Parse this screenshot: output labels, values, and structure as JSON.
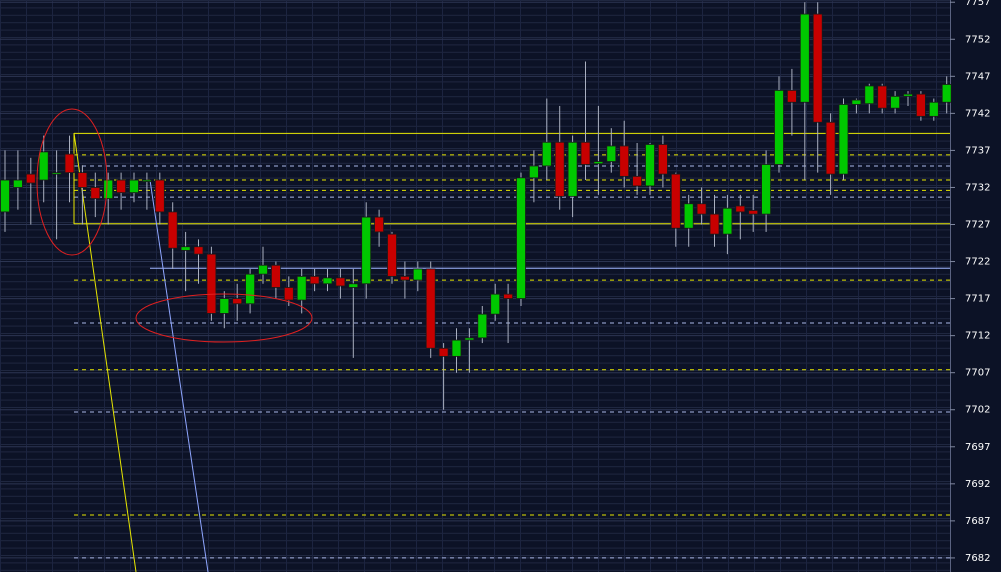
{
  "chart_data": {
    "type": "candlestick",
    "open": [
      7728.7,
      7732,
      7733.8,
      7733,
      7734,
      7736.5,
      7734,
      7732,
      7730.5,
      7733,
      7731.3,
      7733,
      7733,
      7728.7,
      7723.5,
      7724,
      7723,
      7715,
      7717,
      7716.3,
      7720.3,
      7721.5,
      7718.5,
      7716.8,
      7720,
      7719,
      7719.8,
      7718.5,
      7719,
      7728,
      7725.7,
      7720,
      7719.5,
      7721,
      7710.3,
      7709.2,
      7711.4,
      7711.7,
      7714.9,
      7717.6,
      7717,
      7733.3,
      7734.9,
      7738.1,
      7730.8,
      7738.1,
      7735.2,
      7735.5,
      7737.6,
      7733.5,
      7732.2,
      7737.8,
      7733.8,
      7726.5,
      7729.8,
      7728.4,
      7725.7,
      7729.5,
      7728.9,
      7728.4,
      7735.1,
      7745.1,
      7743.5,
      7755.4,
      7740.8,
      7733.8,
      7743.2,
      7743.3,
      7745.7,
      7742.7,
      7744.3,
      7744.6,
      7741.6,
      7743.5
    ],
    "high": [
      7737,
      7737,
      7736,
      7739,
      7737,
      7739,
      7735,
      7734,
      7734,
      7734,
      7734,
      7734,
      7734,
      7730,
      7726,
      7725,
      7724,
      7718,
      7719,
      7721,
      7724,
      7722,
      7720,
      7721,
      7721,
      7721,
      7721,
      7721,
      7730,
      7729,
      7726,
      7722,
      7722,
      7722,
      7711,
      7713,
      7713,
      7716,
      7719,
      7719,
      7734,
      7737,
      7744,
      7743,
      7739,
      7749,
      7743,
      7740,
      7741,
      7738,
      7738,
      7739,
      7734,
      7731,
      7732,
      7731,
      7731,
      7731,
      7731,
      7737,
      7747,
      7748,
      7757,
      7757,
      7742,
      7744,
      7744,
      7746,
      7746,
      7745,
      7745,
      7745,
      7744,
      7747
    ],
    "low": [
      7726,
      7729,
      7727,
      7730,
      7725,
      7730,
      7727,
      7728,
      7727,
      7729,
      7730,
      7729,
      7727,
      7721,
      7718,
      7719,
      7714,
      7713,
      7714,
      7715,
      7719,
      7717,
      7716,
      7715,
      7718,
      7718,
      7717,
      7709,
      7717,
      7724,
      7719,
      7717,
      7718,
      7709,
      7702,
      7707,
      7707,
      7711,
      7714,
      7711,
      7716,
      7730,
      7733,
      7729,
      7728,
      7733,
      7731,
      7734,
      7732,
      7731,
      7731,
      7732,
      7724,
      7724,
      7727,
      7724,
      7723,
      7725,
      7726,
      7726,
      7734,
      7739,
      7733,
      7734,
      7731,
      7733,
      7742,
      7742,
      7742,
      7742,
      7743,
      7741,
      7741,
      7742
    ],
    "close": [
      7733,
      7733,
      7732.6,
      7736.8,
      7734,
      7734,
      7732,
      7730.5,
      7733,
      7731.3,
      7733,
      7733,
      7728.7,
      7723.8,
      7724,
      7723,
      7715,
      7717,
      7716.3,
      7720.3,
      7721.5,
      7718.5,
      7716.8,
      7720,
      7719,
      7719.8,
      7718.7,
      7719,
      7728,
      7726,
      7720,
      7719.5,
      7721,
      7710.3,
      7709.2,
      7711.4,
      7711.7,
      7714.9,
      7717.6,
      7717,
      7733.3,
      7734.9,
      7738.1,
      7730.8,
      7738.1,
      7735.1,
      7735.5,
      7737.6,
      7733.5,
      7732.2,
      7737.8,
      7733.8,
      7726.5,
      7729.8,
      7728.4,
      7725.7,
      7729.2,
      7728.7,
      7728.4,
      7735.1,
      7745.1,
      7743.5,
      7755.4,
      7740.8,
      7733.8,
      7743.2,
      7743.8,
      7745.7,
      7742.7,
      7744.3,
      7744.6,
      7741.6,
      7743.5,
      7745.9
    ],
    "up_color": "#00c800",
    "down_color": "#c80000",
    "ylim": [
      7680.1,
      7757.3
    ],
    "yticks": [
      7757,
      7752,
      7747,
      7742,
      7737,
      7732,
      7727,
      7722,
      7717,
      7712,
      7707,
      7702,
      7697,
      7692,
      7687,
      7682
    ],
    "grid": true,
    "levels": [
      {
        "value": 7739.3,
        "color": "#e6e600",
        "style": "solid"
      },
      {
        "value": 7727.1,
        "color": "#e6e600",
        "style": "solid"
      },
      {
        "value": 7736.4,
        "color": "#e6e600",
        "style": "dashed"
      },
      {
        "value": 7733.0,
        "color": "#e6e600",
        "style": "dashed"
      },
      {
        "value": 7731.6,
        "color": "#e6e600",
        "style": "dashed"
      },
      {
        "value": 7719.5,
        "color": "#e6e600",
        "style": "dashed"
      },
      {
        "value": 7707.4,
        "color": "#e6e600",
        "style": "dashed"
      },
      {
        "value": 7687.8,
        "color": "#e6e600",
        "style": "dashed"
      },
      {
        "value": 7734.9,
        "color": "#aab8e8",
        "style": "dashed"
      },
      {
        "value": 7730.7,
        "color": "#aab8e8",
        "style": "dashed"
      },
      {
        "value": 7713.7,
        "color": "#aab8e8",
        "style": "dashed"
      },
      {
        "value": 7701.7,
        "color": "#aab8e8",
        "style": "dashed"
      },
      {
        "value": 7682.0,
        "color": "#aab8e8",
        "style": "dashed"
      },
      {
        "value": 7721.1,
        "color": "#9fb4ff",
        "style": "solid"
      }
    ]
  }
}
